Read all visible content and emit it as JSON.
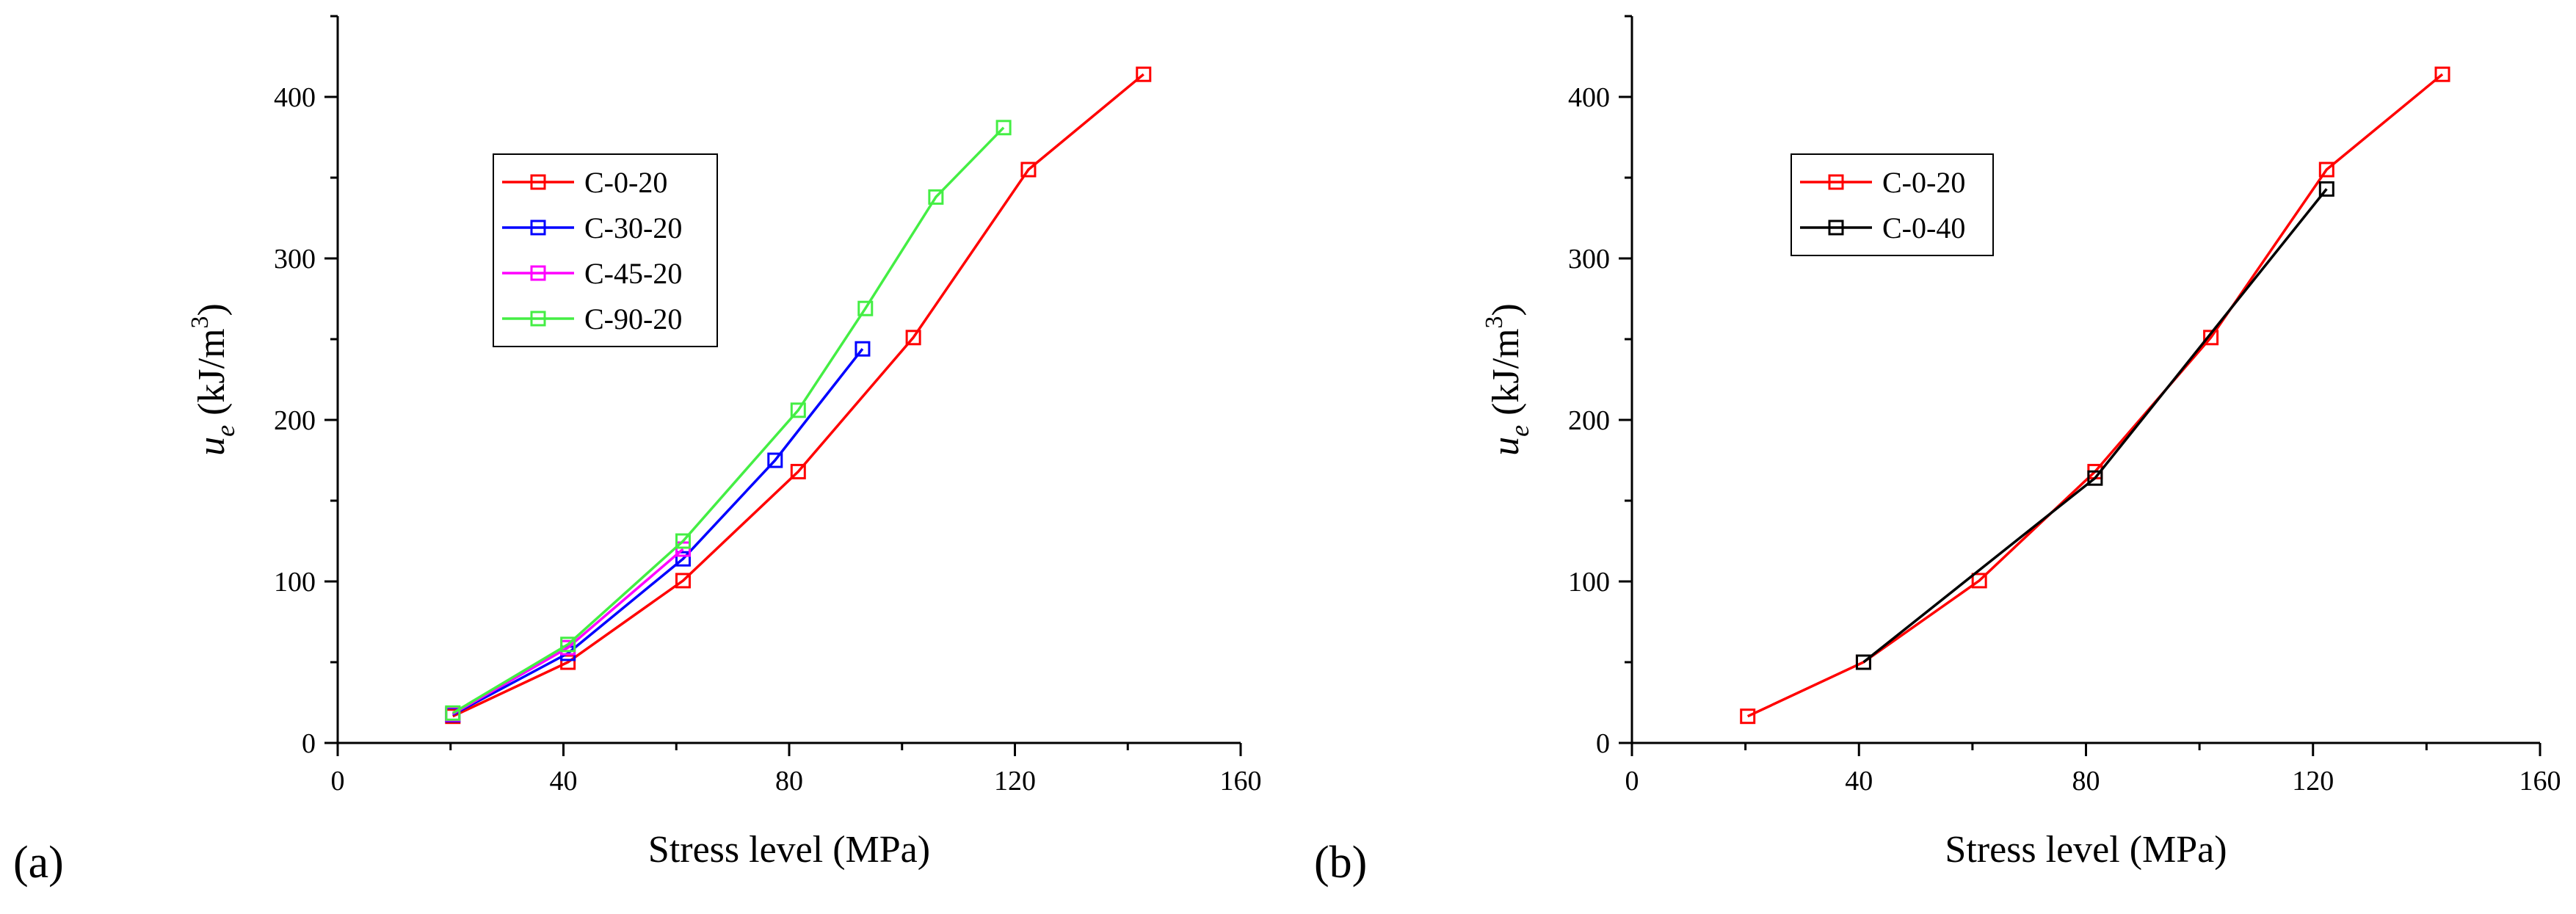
{
  "chart_data": [
    {
      "type": "line",
      "panel_label": "(a)",
      "title": "",
      "xlabel": "Stress level (MPa)",
      "ylabel": "u_e (kJ/m^3)",
      "ylabel_parts": {
        "symbol": "u",
        "subscript": "e",
        "unit_prefix": " (kJ/m",
        "unit_exp": "3",
        "unit_suffix": ")"
      },
      "xlim": [
        0,
        160
      ],
      "ylim": [
        0,
        450
      ],
      "xticks": [
        "0",
        "40",
        "80",
        "120",
        "160"
      ],
      "yticks": [
        "0",
        "100",
        "200",
        "300",
        "400"
      ],
      "grid": false,
      "legend_position": "top-left",
      "series": [
        {
          "name": "C-0-20",
          "color": "#ff0000",
          "x": [
            20.4,
            40.8,
            61.2,
            81.6,
            102,
            122.4,
            142.8
          ],
          "values": [
            16.5,
            50,
            100.5,
            168,
            251,
            355,
            414
          ]
        },
        {
          "name": "C-30-20",
          "color": "#0000ff",
          "x": [
            20.4,
            40.8,
            61.2,
            77.5,
            93
          ],
          "values": [
            17.5,
            55.5,
            114,
            175,
            244
          ]
        },
        {
          "name": "C-45-20",
          "color": "#ff00ff",
          "x": [
            20.4,
            40.8,
            61.2
          ],
          "values": [
            18,
            59,
            120
          ]
        },
        {
          "name": "C-90-20",
          "color": "#44ee44",
          "x": [
            20.4,
            40.8,
            61.2,
            81.6,
            93.5,
            106,
            118
          ],
          "values": [
            18.5,
            61,
            125,
            206,
            269,
            338,
            381
          ]
        }
      ]
    },
    {
      "type": "line",
      "panel_label": "(b)",
      "title": "",
      "xlabel": "Stress level (MPa)",
      "ylabel": "u_e (kJ/m^3)",
      "ylabel_parts": {
        "symbol": "u",
        "subscript": "e",
        "unit_prefix": " (kJ/m",
        "unit_exp": "3",
        "unit_suffix": ")"
      },
      "xlim": [
        0,
        160
      ],
      "ylim": [
        0,
        450
      ],
      "xticks": [
        "0",
        "40",
        "80",
        "120",
        "160"
      ],
      "yticks": [
        "0",
        "100",
        "200",
        "300",
        "400"
      ],
      "grid": false,
      "legend_position": "top-left",
      "series": [
        {
          "name": "C-0-20",
          "color": "#ff0000",
          "x": [
            20.4,
            40.8,
            61.2,
            81.6,
            102,
            122.4,
            142.8
          ],
          "values": [
            16.5,
            50,
            100.5,
            168,
            251,
            355,
            414
          ]
        },
        {
          "name": "C-0-40",
          "color": "#000000",
          "x": [
            40.8,
            81.6,
            122.4
          ],
          "values": [
            50,
            164,
            343
          ]
        }
      ]
    }
  ]
}
